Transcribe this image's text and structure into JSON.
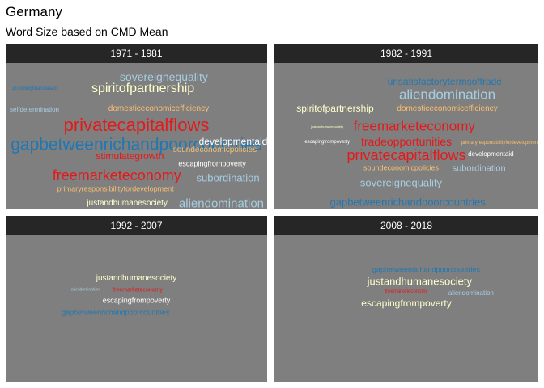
{
  "title": "Germany",
  "subtitle": "Word Size based on CMD Mean",
  "colors": {
    "panel_bg": "#7f7f7f",
    "strip_bg": "#262626",
    "strip_text": "#ffffff",
    "light_blue": "#a6cee3",
    "dark_blue": "#1f78b4",
    "red": "#e31a1c",
    "orange": "#fdbf6f",
    "white": "#ffffff",
    "cream": "#ffffcc"
  },
  "chart_data": {
    "type": "wordcloud",
    "facets": [
      {
        "label": "1971 - 1981",
        "words": [
          {
            "word": "sovereignequality",
            "size": 14,
            "color": "#a6cee3",
            "cx": 0.605,
            "cy": 0.095
          },
          {
            "word": "providingfinancialaid",
            "size": 6,
            "color": "#1f78b4",
            "cx": 0.11,
            "cy": 0.175
          },
          {
            "word": "spiritofpartnership",
            "size": 16,
            "color": "#ffffcc",
            "cx": 0.525,
            "cy": 0.18
          },
          {
            "word": "selfdetermination",
            "size": 8,
            "color": "#a6cee3",
            "cx": 0.11,
            "cy": 0.32
          },
          {
            "word": "domesticeconomicefficiency",
            "size": 10,
            "color": "#fdbf6f",
            "cx": 0.585,
            "cy": 0.315
          },
          {
            "word": "privatecapitalflows",
            "size": 22,
            "color": "#e31a1c",
            "cx": 0.5,
            "cy": 0.43
          },
          {
            "word": "gapbetweenrichandpoorcountries",
            "size": 21,
            "color": "#1f78b4",
            "cx": 0.5,
            "cy": 0.56
          },
          {
            "word": "developmentaid",
            "size": 12,
            "color": "#ffffff",
            "cx": 0.87,
            "cy": 0.54
          },
          {
            "word": "soundeconomicpolicies",
            "size": 10,
            "color": "#fdbf6f",
            "cx": 0.8,
            "cy": 0.6
          },
          {
            "word": "stimulategrowth",
            "size": 12,
            "color": "#e31a1c",
            "cx": 0.475,
            "cy": 0.64
          },
          {
            "word": "escapingfrompoverty",
            "size": 9,
            "color": "#ffffff",
            "cx": 0.79,
            "cy": 0.695
          },
          {
            "word": "freemarketeconomy",
            "size": 18,
            "color": "#e31a1c",
            "cx": 0.425,
            "cy": 0.77
          },
          {
            "word": "subordination",
            "size": 13,
            "color": "#a6cee3",
            "cx": 0.85,
            "cy": 0.79
          },
          {
            "word": "primaryresponsibilityfordevelopment",
            "size": 9,
            "color": "#fdbf6f",
            "cx": 0.42,
            "cy": 0.865
          },
          {
            "word": "justandhumanesociety",
            "size": 10,
            "color": "#ffffcc",
            "cx": 0.465,
            "cy": 0.965
          },
          {
            "word": "aliendomination",
            "size": 15,
            "color": "#a6cee3",
            "cx": 0.825,
            "cy": 0.965
          }
        ]
      },
      {
        "label": "1982 - 1991",
        "words": [
          {
            "word": "unsatisfactorytermsoftrade",
            "size": 12,
            "color": "#1f78b4",
            "cx": 0.645,
            "cy": 0.125
          },
          {
            "word": "aliendomination",
            "size": 17,
            "color": "#a6cee3",
            "cx": 0.655,
            "cy": 0.215
          },
          {
            "word": "spiritofpartnership",
            "size": 12,
            "color": "#ffffcc",
            "cx": 0.23,
            "cy": 0.31
          },
          {
            "word": "domesticeconomicefficiency",
            "size": 10,
            "color": "#fdbf6f",
            "cx": 0.655,
            "cy": 0.315
          },
          {
            "word": "freemarketeconomy",
            "size": 17,
            "color": "#e31a1c",
            "cx": 0.53,
            "cy": 0.435
          },
          {
            "word": "justandhumanesociety",
            "size": 4,
            "color": "#ffffcc",
            "cx": 0.2,
            "cy": 0.44
          },
          {
            "word": "escapingfrompoverty",
            "size": 6,
            "color": "#ffffff",
            "cx": 0.2,
            "cy": 0.545
          },
          {
            "word": "tradeopportunities",
            "size": 14,
            "color": "#e31a1c",
            "cx": 0.5,
            "cy": 0.54
          },
          {
            "word": "primaryresponsibilityfordevelopment",
            "size": 6,
            "color": "#fdbf6f",
            "cx": 0.855,
            "cy": 0.55
          },
          {
            "word": "privatecapitalflows",
            "size": 18,
            "color": "#e31a1c",
            "cx": 0.5,
            "cy": 0.635
          },
          {
            "word": "developmentaid",
            "size": 8,
            "color": "#ffffff",
            "cx": 0.82,
            "cy": 0.63
          },
          {
            "word": "soundeconomicpolicies",
            "size": 9,
            "color": "#fdbf6f",
            "cx": 0.48,
            "cy": 0.72
          },
          {
            "word": "subordination",
            "size": 11,
            "color": "#a6cee3",
            "cx": 0.775,
            "cy": 0.73
          },
          {
            "word": "sovereignequality",
            "size": 13,
            "color": "#a6cee3",
            "cx": 0.48,
            "cy": 0.82
          },
          {
            "word": "gapbetweenrichandpoorcountries",
            "size": 13,
            "color": "#1f78b4",
            "cx": 0.505,
            "cy": 0.955
          }
        ]
      },
      {
        "label": "1992 - 2007",
        "words": [
          {
            "word": "justandhumanesociety",
            "size": 10,
            "color": "#ffffcc",
            "cx": 0.5,
            "cy": 0.3
          },
          {
            "word": "aliendomination",
            "size": 5,
            "color": "#a6cee3",
            "cx": 0.305,
            "cy": 0.375
          },
          {
            "word": "freemarketeconomy",
            "size": 7,
            "color": "#e31a1c",
            "cx": 0.505,
            "cy": 0.375
          },
          {
            "word": "escapingfrompoverty",
            "size": 9,
            "color": "#ffffff",
            "cx": 0.5,
            "cy": 0.445
          },
          {
            "word": "gapbetweenrichandpoorcountries",
            "size": 9,
            "color": "#1f78b4",
            "cx": 0.42,
            "cy": 0.53
          }
        ]
      },
      {
        "label": "2008 - 2018",
        "words": [
          {
            "word": "gapbetweenrichandpoorcountries",
            "size": 9,
            "color": "#1f78b4",
            "cx": 0.575,
            "cy": 0.24
          },
          {
            "word": "justandhumanesociety",
            "size": 13,
            "color": "#ffffcc",
            "cx": 0.55,
            "cy": 0.315
          },
          {
            "word": "freemarketeconomy",
            "size": 6,
            "color": "#e31a1c",
            "cx": 0.5,
            "cy": 0.385
          },
          {
            "word": "aliendomination",
            "size": 8,
            "color": "#a6cee3",
            "cx": 0.745,
            "cy": 0.4
          },
          {
            "word": "escapingfrompoverty",
            "size": 12,
            "color": "#ffffcc",
            "cx": 0.5,
            "cy": 0.465
          }
        ]
      }
    ]
  }
}
